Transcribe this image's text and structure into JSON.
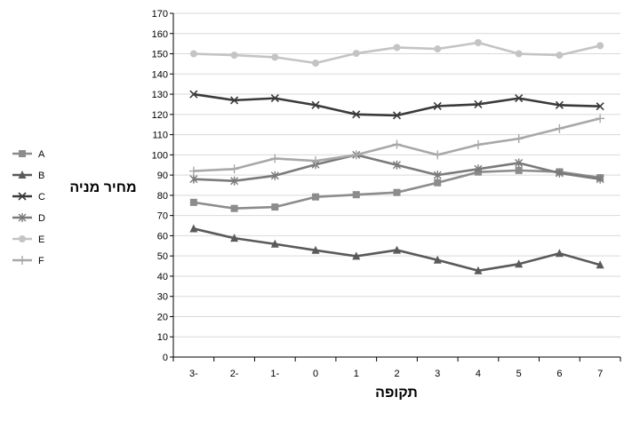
{
  "chart_data": {
    "type": "line",
    "title": "",
    "xlabel": "תקופה",
    "ylabel": "מחיר מניה",
    "categories": [
      "3-",
      "2-",
      "1-",
      "0",
      "1",
      "2",
      "3",
      "4",
      "5",
      "6",
      "7"
    ],
    "ylim": [
      0,
      170
    ],
    "yticks": [
      0,
      10,
      20,
      30,
      40,
      50,
      60,
      70,
      80,
      90,
      100,
      110,
      120,
      130,
      140,
      150,
      160,
      170
    ],
    "grid": "horizontal",
    "legend_position": "left",
    "series": [
      {
        "name": "A",
        "color": "#8c8c8c",
        "marker": "square",
        "values": [
          76.5,
          73.5,
          74.2,
          79.2,
          80.3,
          81.4,
          86.2,
          91.5,
          92.3,
          91.6,
          88.7
        ]
      },
      {
        "name": "B",
        "color": "#5a5a5a",
        "marker": "triangle",
        "values": [
          63.5,
          58.8,
          55.9,
          52.8,
          49.9,
          52.9,
          48.0,
          42.7,
          46.0,
          51.3,
          45.6
        ]
      },
      {
        "name": "C",
        "color": "#3a3a3a",
        "marker": "x",
        "values": [
          130.0,
          127.0,
          128.0,
          124.6,
          120.0,
          119.5,
          124.1,
          125.0,
          128.0,
          124.6,
          124.0
        ]
      },
      {
        "name": "D",
        "color": "#7a7a7a",
        "marker": "star",
        "values": [
          88.0,
          87.1,
          89.7,
          95.2,
          100.0,
          95.0,
          90.0,
          93.0,
          96.0,
          91.0,
          88.0
        ]
      },
      {
        "name": "E",
        "color": "#c4c4c4",
        "marker": "circle",
        "values": [
          150.0,
          149.3,
          148.3,
          145.4,
          150.2,
          153.1,
          152.4,
          155.5,
          150.0,
          149.3,
          154.0
        ]
      },
      {
        "name": "F",
        "color": "#a8a8a8",
        "marker": "plus",
        "values": [
          92.0,
          93.0,
          98.2,
          97.0,
          100.0,
          105.2,
          100.0,
          105.0,
          108.0,
          113.0,
          118.0
        ]
      }
    ]
  }
}
